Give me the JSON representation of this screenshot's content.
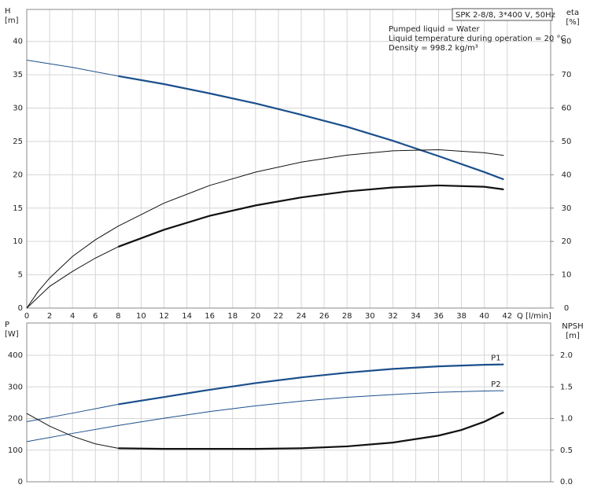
{
  "chart_data": [
    {
      "type": "line",
      "title": "SPK 2-8/8, 3*400 V, 50Hz",
      "annotations": [
        "Pumped liquid = Water",
        "Liquid temperature during operation = 20 °C",
        "Density = 998.2 kg/m³"
      ],
      "xlabel": "Q [l/min]",
      "ylabel": [
        "H",
        "[m]"
      ],
      "y2label": [
        "eta",
        "[%]"
      ],
      "xlim": [
        0,
        45.8
      ],
      "ylim": [
        0,
        44.8
      ],
      "y2lim": [
        0,
        89.6
      ],
      "xticks": [
        0,
        2,
        4,
        6,
        8,
        10,
        12,
        14,
        16,
        18,
        20,
        22,
        24,
        26,
        28,
        30,
        32,
        34,
        36,
        38,
        40,
        42
      ],
      "yticks": [
        0,
        5,
        10,
        15,
        20,
        25,
        30,
        35,
        40
      ],
      "y2ticks": [
        0,
        10,
        20,
        30,
        40,
        50,
        60,
        70,
        80
      ],
      "x_tick_labels": true,
      "grid": true,
      "series": [
        {
          "color": "#1b4f8c",
          "width": 1,
          "x": [
            0,
            4,
            8
          ],
          "values": [
            37.2,
            36.1,
            34.8
          ]
        },
        {
          "color": "#1b4f8c",
          "width": 2.2,
          "x": [
            8,
            12,
            16,
            20,
            24,
            28,
            32,
            36,
            40,
            41.7
          ],
          "values": [
            34.8,
            33.6,
            32.2,
            30.7,
            29.0,
            27.2,
            25.1,
            22.8,
            20.4,
            19.3
          ]
        },
        {
          "color": "#111111",
          "width": 1,
          "axis": "y2",
          "x": [
            0,
            1,
            2,
            4,
            6,
            8,
            12,
            16,
            20,
            24,
            28,
            32,
            36,
            40,
            41.7
          ],
          "values": [
            0,
            5,
            9,
            15.5,
            20.5,
            24.6,
            31.5,
            36.8,
            40.8,
            43.8,
            45.9,
            47.2,
            47.5,
            46.6,
            45.8
          ]
        },
        {
          "color": "#111111",
          "width": 1,
          "axis": "y2",
          "x": [
            0,
            2,
            4,
            6,
            8
          ],
          "values": [
            0,
            6.5,
            11,
            15,
            18.4
          ]
        },
        {
          "color": "#111111",
          "width": 2.2,
          "axis": "y2",
          "x": [
            8,
            12,
            16,
            20,
            24,
            28,
            32,
            36,
            40,
            41.7
          ],
          "values": [
            18.4,
            23.5,
            27.7,
            30.8,
            33.2,
            35,
            36.2,
            36.8,
            36.4,
            35.6
          ]
        }
      ]
    },
    {
      "type": "line",
      "ylabel": [
        "P",
        "[W]"
      ],
      "y2label": [
        "NPSH",
        "[m]"
      ],
      "xlim": [
        0,
        45.8
      ],
      "ylim": [
        0,
        502
      ],
      "y2lim": [
        0,
        2.51
      ],
      "xticks": [
        0,
        2,
        4,
        6,
        8,
        10,
        12,
        14,
        16,
        18,
        20,
        22,
        24,
        26,
        28,
        30,
        32,
        34,
        36,
        38,
        40,
        42
      ],
      "yticks": [
        0,
        100,
        200,
        300,
        400
      ],
      "y2ticks": [
        {
          "value": 0,
          "label": "0.0"
        },
        0.5,
        {
          "value": 1,
          "label": "1.0"
        },
        1.5,
        {
          "value": 2,
          "label": "2.0"
        }
      ],
      "x_tick_labels": false,
      "grid": true,
      "series": [
        {
          "color": "#1b4f8c",
          "width": 1,
          "x": [
            0,
            4,
            8
          ],
          "values": [
            190,
            217,
            245
          ]
        },
        {
          "name": "P1",
          "color": "#1b4f8c",
          "width": 2.2,
          "x": [
            8,
            12,
            16,
            20,
            24,
            28,
            32,
            36,
            40,
            41.7
          ],
          "values": [
            245,
            268,
            291,
            312,
            330,
            345,
            357,
            365,
            370,
            371
          ]
        },
        {
          "name": "P2",
          "color": "#1b4f8c",
          "width": 1,
          "x": [
            0,
            4,
            8,
            12,
            16,
            20,
            24,
            28,
            32,
            36,
            40,
            41.7
          ],
          "values": [
            127,
            153,
            178,
            201,
            222,
            240,
            255,
            267,
            276,
            283,
            287,
            288
          ]
        },
        {
          "color": "#111111",
          "width": 1,
          "axis": "y2",
          "x": [
            0,
            2,
            4,
            6,
            8
          ],
          "values": [
            1.08,
            0.88,
            0.72,
            0.6,
            0.53
          ]
        },
        {
          "color": "#111111",
          "width": 2.2,
          "axis": "y2",
          "x": [
            8,
            12,
            16,
            20,
            24,
            28,
            32,
            36,
            38,
            40,
            41.7
          ],
          "values": [
            0.53,
            0.52,
            0.52,
            0.52,
            0.53,
            0.56,
            0.62,
            0.73,
            0.82,
            0.95,
            1.1
          ]
        }
      ]
    }
  ]
}
